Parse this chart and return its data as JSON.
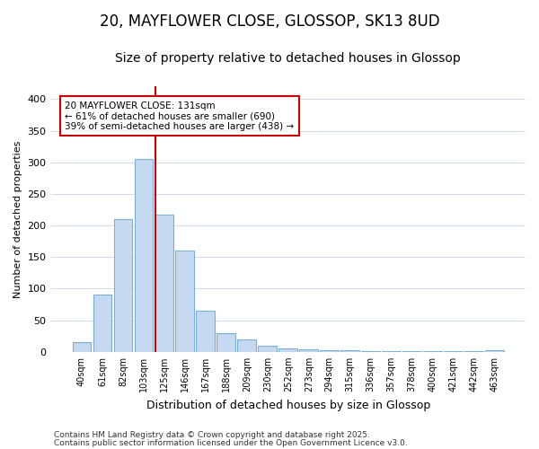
{
  "title1": "20, MAYFLOWER CLOSE, GLOSSOP, SK13 8UD",
  "title2": "Size of property relative to detached houses in Glossop",
  "xlabel": "Distribution of detached houses by size in Glossop",
  "ylabel": "Number of detached properties",
  "bin_labels": [
    "40sqm",
    "61sqm",
    "82sqm",
    "103sqm",
    "125sqm",
    "146sqm",
    "167sqm",
    "188sqm",
    "209sqm",
    "230sqm",
    "252sqm",
    "273sqm",
    "294sqm",
    "315sqm",
    "336sqm",
    "357sqm",
    "378sqm",
    "400sqm",
    "421sqm",
    "442sqm",
    "463sqm"
  ],
  "bar_heights": [
    15,
    90,
    210,
    305,
    217,
    160,
    65,
    30,
    19,
    10,
    5,
    4,
    2,
    2,
    1,
    1,
    1,
    1,
    1,
    1,
    2
  ],
  "bar_color": "#c5d9f0",
  "bar_edgecolor": "#7bafd4",
  "bar_linewidth": 0.8,
  "red_line_bin_index": 4,
  "red_line_color": "#cc0000",
  "annotation_text": "20 MAYFLOWER CLOSE: 131sqm\n← 61% of detached houses are smaller (690)\n39% of semi-detached houses are larger (438) →",
  "annotation_box_facecolor": "#ffffff",
  "annotation_box_edgecolor": "#cc0000",
  "footer1": "Contains HM Land Registry data © Crown copyright and database right 2025.",
  "footer2": "Contains public sector information licensed under the Open Government Licence v3.0.",
  "ylim": [
    0,
    420
  ],
  "yticks": [
    0,
    50,
    100,
    150,
    200,
    250,
    300,
    350,
    400
  ],
  "background_color": "#ffffff",
  "grid_color": "#d0ddf0",
  "title_fontsize": 12,
  "subtitle_fontsize": 10
}
